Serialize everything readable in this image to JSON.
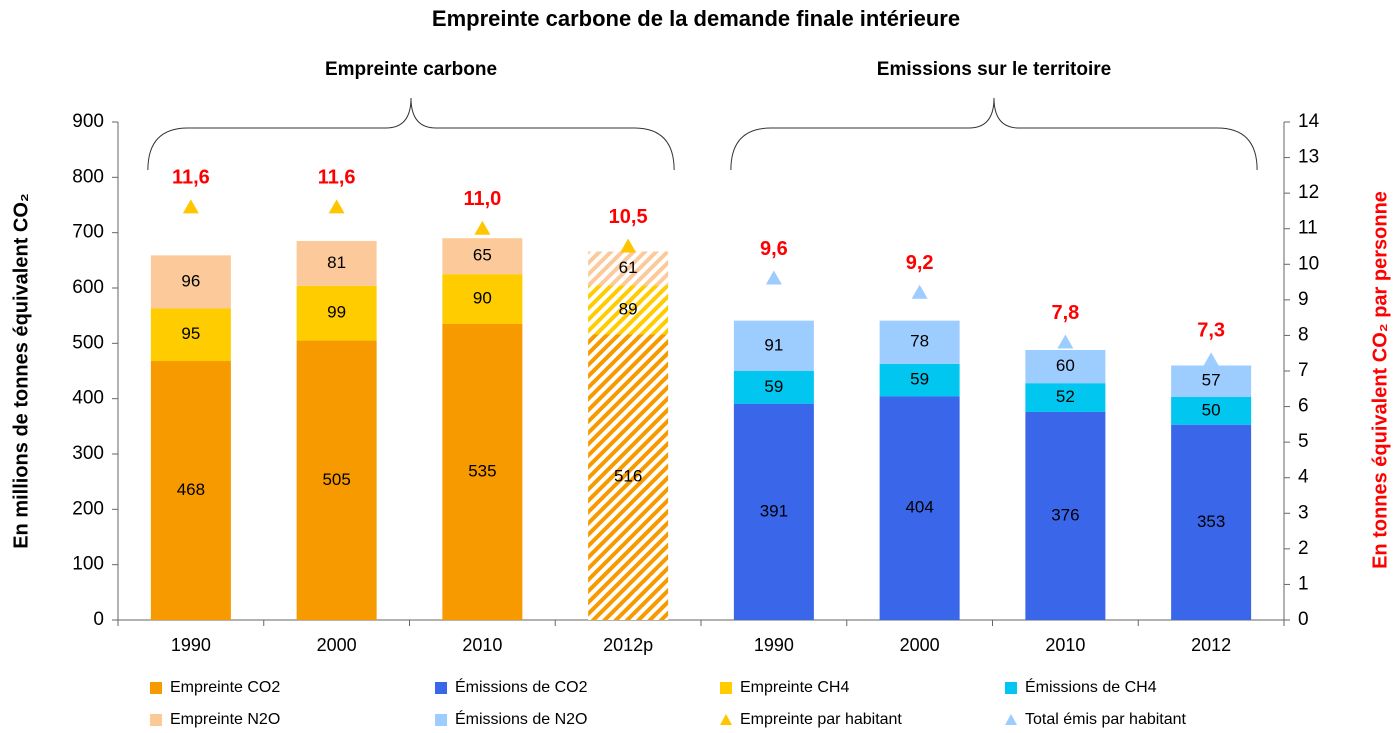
{
  "chart_data": {
    "type": "stacked_bar",
    "title": "Empreinte carbone de la demande finale intérieure",
    "y_label": "En millions de tonnes équivalent CO₂",
    "y2_label": "En tonnes équivalent CO₂ par personne",
    "groups": [
      {
        "label": "Empreinte carbone",
        "start": 0,
        "end": 3
      },
      {
        "label": "Emissions sur le territoire",
        "start": 4,
        "end": 7
      }
    ],
    "categories": [
      "1990",
      "2000",
      "2010",
      "2012p",
      "1990",
      "2000",
      "2010",
      "2012"
    ],
    "hatch": [
      false,
      false,
      false,
      true,
      false,
      false,
      false,
      false
    ],
    "ylim": [
      0,
      900
    ],
    "yticks": [
      0,
      100,
      200,
      300,
      400,
      500,
      600,
      700,
      800,
      900
    ],
    "y2lim": [
      0,
      14
    ],
    "y2ticks": [
      0,
      1,
      2,
      3,
      4,
      5,
      6,
      7,
      8,
      9,
      10,
      11,
      12,
      13,
      14
    ],
    "series": [
      {
        "name": "Empreinte CO2",
        "color": "#f79a00",
        "values": [
          468,
          505,
          535,
          516,
          null,
          null,
          null,
          null
        ]
      },
      {
        "name": "Émissions de CO2",
        "color": "#3a66ea",
        "values": [
          null,
          null,
          null,
          null,
          391,
          404,
          376,
          353
        ]
      },
      {
        "name": "Empreinte CH4",
        "color": "#ffcc00",
        "values": [
          95,
          99,
          90,
          89,
          null,
          null,
          null,
          null
        ]
      },
      {
        "name": "Émissions de CH4",
        "color": "#00c6f0",
        "values": [
          null,
          null,
          null,
          null,
          59,
          59,
          52,
          50
        ]
      },
      {
        "name": "Empreinte N2O",
        "color": "#fbc99a",
        "values": [
          96,
          81,
          65,
          61,
          null,
          null,
          null,
          null
        ]
      },
      {
        "name": "Émissions de N2O",
        "color": "#9dccff",
        "values": [
          null,
          null,
          null,
          null,
          91,
          78,
          60,
          57
        ]
      },
      {
        "name": "Empreinte par habitant",
        "color": "#ffc600",
        "axis": "y2",
        "marker": "triangle",
        "values": [
          11.6,
          11.6,
          11.0,
          10.5,
          null,
          null,
          null,
          null
        ],
        "value_labels": [
          "11,6",
          "11,6",
          "11,0",
          "10,5",
          null,
          null,
          null,
          null
        ]
      },
      {
        "name": "Total émis par habitant",
        "color": "#9dccff",
        "axis": "y2",
        "marker": "triangle",
        "values": [
          null,
          null,
          null,
          null,
          9.6,
          9.2,
          7.8,
          7.3
        ],
        "value_labels": [
          null,
          null,
          null,
          null,
          "9,6",
          "9,2",
          "7,8",
          "7,3"
        ]
      }
    ]
  }
}
